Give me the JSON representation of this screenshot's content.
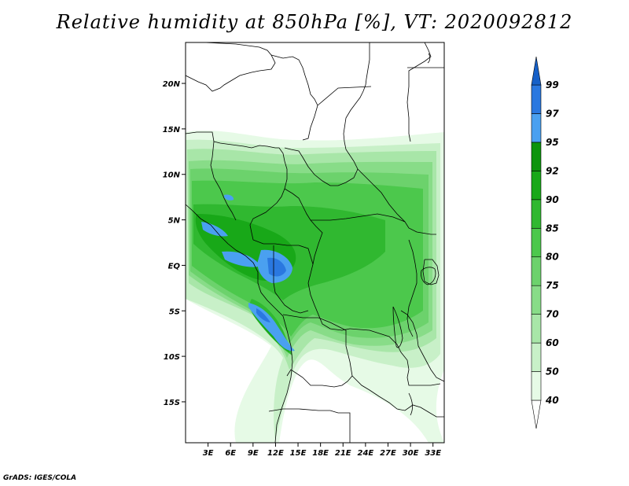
{
  "title": "Relative humidity at 850hPa [%], VT: 2020092812",
  "footer": "GrADS: IGES/COLA",
  "map": {
    "lon_range": [
      0,
      34.5
    ],
    "lat_range": [
      -19.5,
      24.5
    ],
    "lat_ticks": [
      {
        "value": 20,
        "label": "20N"
      },
      {
        "value": 15,
        "label": "15N"
      },
      {
        "value": 10,
        "label": "10N"
      },
      {
        "value": 5,
        "label": "5N"
      },
      {
        "value": 0,
        "label": "EQ"
      },
      {
        "value": -5,
        "label": "5S"
      },
      {
        "value": -10,
        "label": "10S"
      },
      {
        "value": -15,
        "label": "15S"
      }
    ],
    "lon_ticks": [
      {
        "value": 3,
        "label": "3E"
      },
      {
        "value": 6,
        "label": "6E"
      },
      {
        "value": 9,
        "label": "9E"
      },
      {
        "value": 12,
        "label": "12E"
      },
      {
        "value": 15,
        "label": "15E"
      },
      {
        "value": 18,
        "label": "18E"
      },
      {
        "value": 21,
        "label": "21E"
      },
      {
        "value": 24,
        "label": "24E"
      },
      {
        "value": 27,
        "label": "27E"
      },
      {
        "value": 30,
        "label": "30E"
      },
      {
        "value": 33,
        "label": "33E"
      }
    ]
  },
  "colorbar": {
    "levels": [
      "40",
      "50",
      "60",
      "70",
      "75",
      "80",
      "85",
      "90",
      "92",
      "95",
      "97",
      "99"
    ],
    "colors": [
      "#ffffff",
      "#e6fae6",
      "#c8f0c8",
      "#a8e6a8",
      "#88dc88",
      "#6cd26c",
      "#4cc84c",
      "#30b830",
      "#18a818",
      "#0c940c",
      "#4aa0f0",
      "#2a78e0",
      "#1660c8"
    ]
  }
}
